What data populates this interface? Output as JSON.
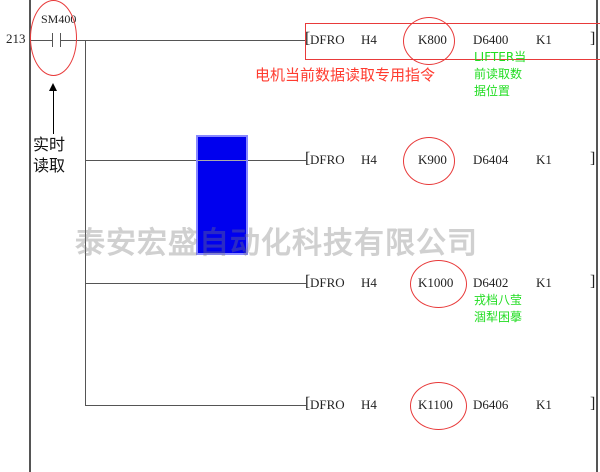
{
  "rung_number": "213",
  "contact": {
    "label": "SM400"
  },
  "annotation_realtime": [
    "实时",
    "读取"
  ],
  "annotation_instruction": "电机当前数据读取专用指令",
  "watermark": "泰安宏盛自动化科技有限公司",
  "rows": [
    {
      "instr": "DFRO",
      "op1": "H4",
      "op2": "K800",
      "op3": "D6400",
      "op4": "K1",
      "comment": [
        "LIFTER当",
        "前读取数",
        "据位置"
      ]
    },
    {
      "instr": "DFRO",
      "op1": "H4",
      "op2": "K900",
      "op3": "D6404",
      "op4": "K1",
      "comment": []
    },
    {
      "instr": "DFRO",
      "op1": "H4",
      "op2": "K1000",
      "op3": "D6402",
      "op4": "K1",
      "comment": [
        "戎档八莹",
        "涸犁困摹"
      ]
    },
    {
      "instr": "DFRO",
      "op1": "H4",
      "op2": "K1100",
      "op3": "D6406",
      "op4": "K1",
      "comment": []
    }
  ],
  "colors": {
    "highlight": "#e83a3a",
    "comment": "#22dd22",
    "block": "#0000ee"
  }
}
